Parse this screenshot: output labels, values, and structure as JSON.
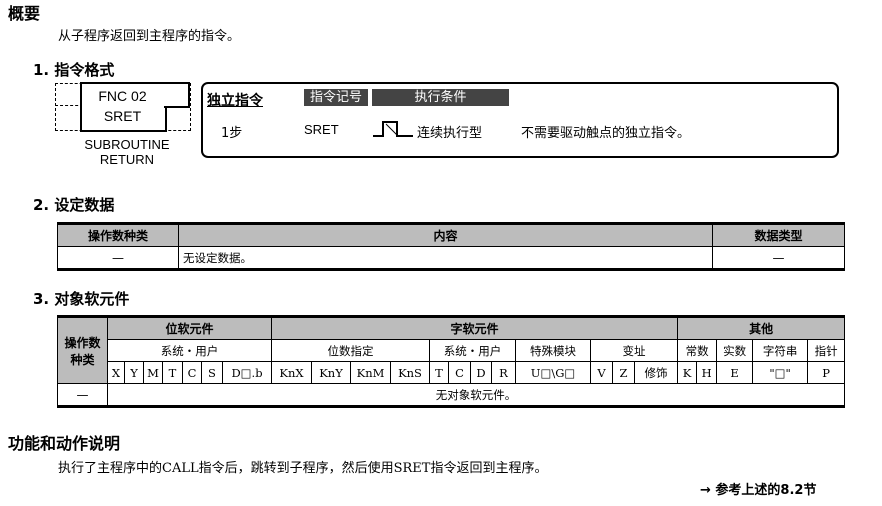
{
  "overview": {
    "title": "概要",
    "desc": "从子程序返回到主程序的指令。"
  },
  "sec1": {
    "title": "1. 指令格式",
    "fnc": "FNC 02",
    "mnemonic": "SRET",
    "caption1": "SUBROUTINE",
    "caption2": "RETURN",
    "type_label": "独立指令",
    "hdr_symbol": "指令记号",
    "hdr_cond": "执行条件",
    "steps": "1步",
    "symbol": "SRET",
    "cond": "连续执行型",
    "note": "不需要驱动触点的独立指令。"
  },
  "sec2": {
    "title": "2. 设定数据",
    "headers": [
      "操作数种类",
      "内容",
      "数据类型"
    ],
    "row": [
      "—",
      "无设定数据。",
      "—"
    ]
  },
  "sec3": {
    "title": "3. 对象软元件",
    "op_header": "操作数种类",
    "bit": "位软元件",
    "word": "字软元件",
    "other": "其他",
    "sub": [
      "系统・用户",
      "位数指定",
      "系统・用户",
      "特殊模块",
      "变址",
      "常数",
      "实数",
      "字符串",
      "指针"
    ],
    "cols": [
      "X",
      "Y",
      "M",
      "T",
      "C",
      "S",
      "D□.b",
      "KnX",
      "KnY",
      "KnM",
      "KnS",
      "T",
      "C",
      "D",
      "R",
      "U□\\G□",
      "V",
      "Z",
      "修饰",
      "K",
      "H",
      "E",
      "\"□\"",
      "P"
    ],
    "row_op": "—",
    "row_text": "无对象软元件。"
  },
  "func": {
    "title": "功能和动作说明",
    "desc": "执行了主程序中的CALL指令后，跳转到子程序，然后使用SRET指令返回到主程序。",
    "ref": "→ 参考上述的8.2节"
  }
}
